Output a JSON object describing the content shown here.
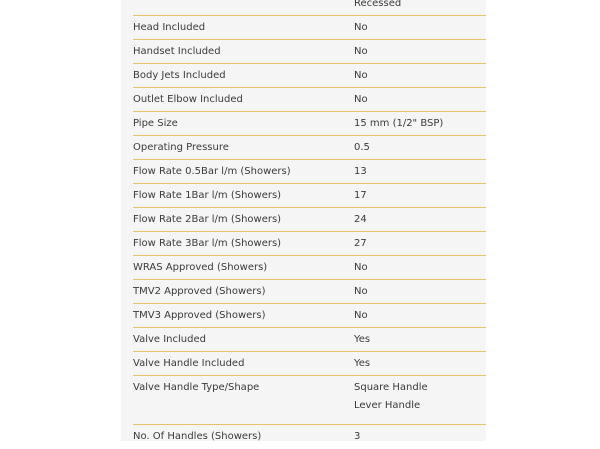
{
  "accent_line_color": "#e3c46a",
  "specs": [
    {
      "label": "",
      "values": [
        "Recessed"
      ]
    },
    {
      "label": "Head Included",
      "values": [
        "No"
      ]
    },
    {
      "label": "Handset Included",
      "values": [
        "No"
      ]
    },
    {
      "label": "Body Jets Included",
      "values": [
        "No"
      ]
    },
    {
      "label": "Outlet Elbow Included",
      "values": [
        "No"
      ]
    },
    {
      "label": "Pipe Size",
      "values": [
        "15 mm (1/2\" BSP)"
      ]
    },
    {
      "label": "Operating Pressure",
      "values": [
        "0.5"
      ]
    },
    {
      "label": "Flow Rate 0.5Bar l/m (Showers)",
      "values": [
        "13"
      ]
    },
    {
      "label": "Flow Rate 1Bar l/m (Showers)",
      "values": [
        "17"
      ]
    },
    {
      "label": "Flow Rate 2Bar l/m (Showers)",
      "values": [
        "24"
      ]
    },
    {
      "label": "Flow Rate 3Bar l/m (Showers)",
      "values": [
        "27"
      ]
    },
    {
      "label": "WRAS Approved (Showers)",
      "values": [
        "No"
      ]
    },
    {
      "label": "TMV2 Approved (Showers)",
      "values": [
        "No"
      ]
    },
    {
      "label": "TMV3 Approved (Showers)",
      "values": [
        "No"
      ]
    },
    {
      "label": "Valve Included",
      "values": [
        "Yes"
      ]
    },
    {
      "label": "Valve Handle Included",
      "values": [
        "Yes"
      ]
    },
    {
      "label": "Valve Handle Type/Shape",
      "values": [
        "Square Handle",
        "Lever Handle"
      ]
    },
    {
      "label": "No. Of Handles (Showers)",
      "values": [
        "3"
      ]
    }
  ]
}
